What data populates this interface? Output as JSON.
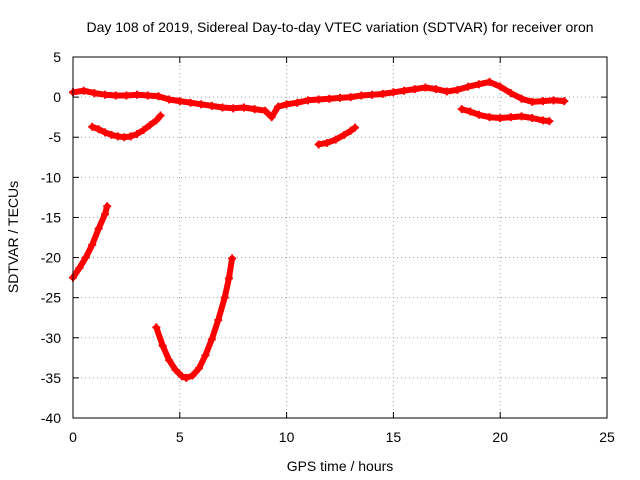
{
  "chart_data": {
    "type": "scatter",
    "title": "Day 108 of 2019, Sidereal Day-to-day VTEC variation (SDTVAR) for receiver oron",
    "xlabel": "GPS time / hours",
    "ylabel": "SDTVAR / TECUs",
    "xlim": [
      0,
      25
    ],
    "ylim": [
      -40,
      5
    ],
    "xticks": [
      0,
      5,
      10,
      15,
      20,
      25
    ],
    "yticks": [
      5,
      0,
      -5,
      -10,
      -15,
      -20,
      -25,
      -30,
      -35,
      -40
    ],
    "grid": true,
    "marker_color": "#ff0000",
    "series": [
      {
        "name": "upper-band",
        "points": [
          [
            0,
            0.6
          ],
          [
            0.5,
            0.8
          ],
          [
            1,
            0.5
          ],
          [
            1.5,
            0.3
          ],
          [
            2,
            0.2
          ],
          [
            2.5,
            0.2
          ],
          [
            3,
            0.3
          ],
          [
            3.5,
            0.2
          ],
          [
            4,
            0.1
          ],
          [
            4.5,
            -0.3
          ],
          [
            5,
            -0.5
          ],
          [
            5.5,
            -0.7
          ],
          [
            6,
            -0.9
          ],
          [
            6.5,
            -1.1
          ],
          [
            7,
            -1.3
          ],
          [
            7.5,
            -1.4
          ],
          [
            8,
            -1.3
          ],
          [
            8.5,
            -1.5
          ],
          [
            9,
            -1.7
          ],
          [
            9.3,
            -2.5
          ],
          [
            9.6,
            -1.2
          ],
          [
            10,
            -0.9
          ],
          [
            10.5,
            -0.7
          ],
          [
            11,
            -0.4
          ],
          [
            11.5,
            -0.3
          ],
          [
            12,
            -0.2
          ],
          [
            12.5,
            -0.1
          ],
          [
            13,
            0.0
          ],
          [
            13.5,
            0.2
          ],
          [
            14,
            0.3
          ],
          [
            14.5,
            0.4
          ],
          [
            15,
            0.6
          ],
          [
            15.5,
            0.8
          ],
          [
            16,
            1.0
          ],
          [
            16.5,
            1.2
          ],
          [
            17,
            1.0
          ],
          [
            17.5,
            0.7
          ],
          [
            18,
            0.9
          ],
          [
            18.5,
            1.3
          ],
          [
            19,
            1.6
          ],
          [
            19.5,
            1.9
          ],
          [
            20,
            1.3
          ],
          [
            20.5,
            0.5
          ],
          [
            21,
            -0.2
          ],
          [
            21.5,
            -0.6
          ],
          [
            22,
            -0.5
          ],
          [
            22.5,
            -0.4
          ],
          [
            23,
            -0.5
          ]
        ]
      },
      {
        "name": "arc-1",
        "points": [
          [
            0.9,
            -3.7
          ],
          [
            1.2,
            -4.0
          ],
          [
            1.5,
            -4.4
          ],
          [
            1.8,
            -4.7
          ],
          [
            2.1,
            -4.9
          ],
          [
            2.4,
            -5.0
          ],
          [
            2.7,
            -4.9
          ],
          [
            3.0,
            -4.6
          ],
          [
            3.3,
            -4.1
          ],
          [
            3.6,
            -3.5
          ],
          [
            3.9,
            -2.9
          ],
          [
            4.1,
            -2.3
          ]
        ]
      },
      {
        "name": "arc-2",
        "points": [
          [
            11.5,
            -5.9
          ],
          [
            11.9,
            -5.7
          ],
          [
            12.3,
            -5.3
          ],
          [
            12.7,
            -4.7
          ],
          [
            13.0,
            -4.2
          ],
          [
            13.2,
            -3.8
          ]
        ]
      },
      {
        "name": "arc-3",
        "points": [
          [
            18.2,
            -1.5
          ],
          [
            18.6,
            -1.8
          ],
          [
            19.0,
            -2.2
          ],
          [
            19.5,
            -2.5
          ],
          [
            20,
            -2.6
          ],
          [
            20.5,
            -2.5
          ],
          [
            21,
            -2.4
          ],
          [
            21.5,
            -2.6
          ],
          [
            22,
            -2.9
          ],
          [
            22.3,
            -3.0
          ]
        ]
      },
      {
        "name": "ramp-1",
        "points": [
          [
            0,
            -22.5
          ],
          [
            0.3,
            -21.3
          ],
          [
            0.6,
            -20.0
          ],
          [
            0.9,
            -18.4
          ],
          [
            1.2,
            -16.4
          ],
          [
            1.5,
            -14.6
          ],
          [
            1.6,
            -13.6
          ]
        ]
      },
      {
        "name": "bowl",
        "points": [
          [
            3.9,
            -28.7
          ],
          [
            4.2,
            -31.0
          ],
          [
            4.5,
            -32.8
          ],
          [
            4.8,
            -34.0
          ],
          [
            5.1,
            -34.8
          ],
          [
            5.3,
            -35.0
          ],
          [
            5.6,
            -34.7
          ],
          [
            5.9,
            -33.8
          ],
          [
            6.2,
            -32.2
          ],
          [
            6.5,
            -30.2
          ],
          [
            6.8,
            -27.8
          ],
          [
            7.1,
            -25.0
          ],
          [
            7.3,
            -22.6
          ],
          [
            7.45,
            -20.1
          ]
        ]
      }
    ]
  }
}
